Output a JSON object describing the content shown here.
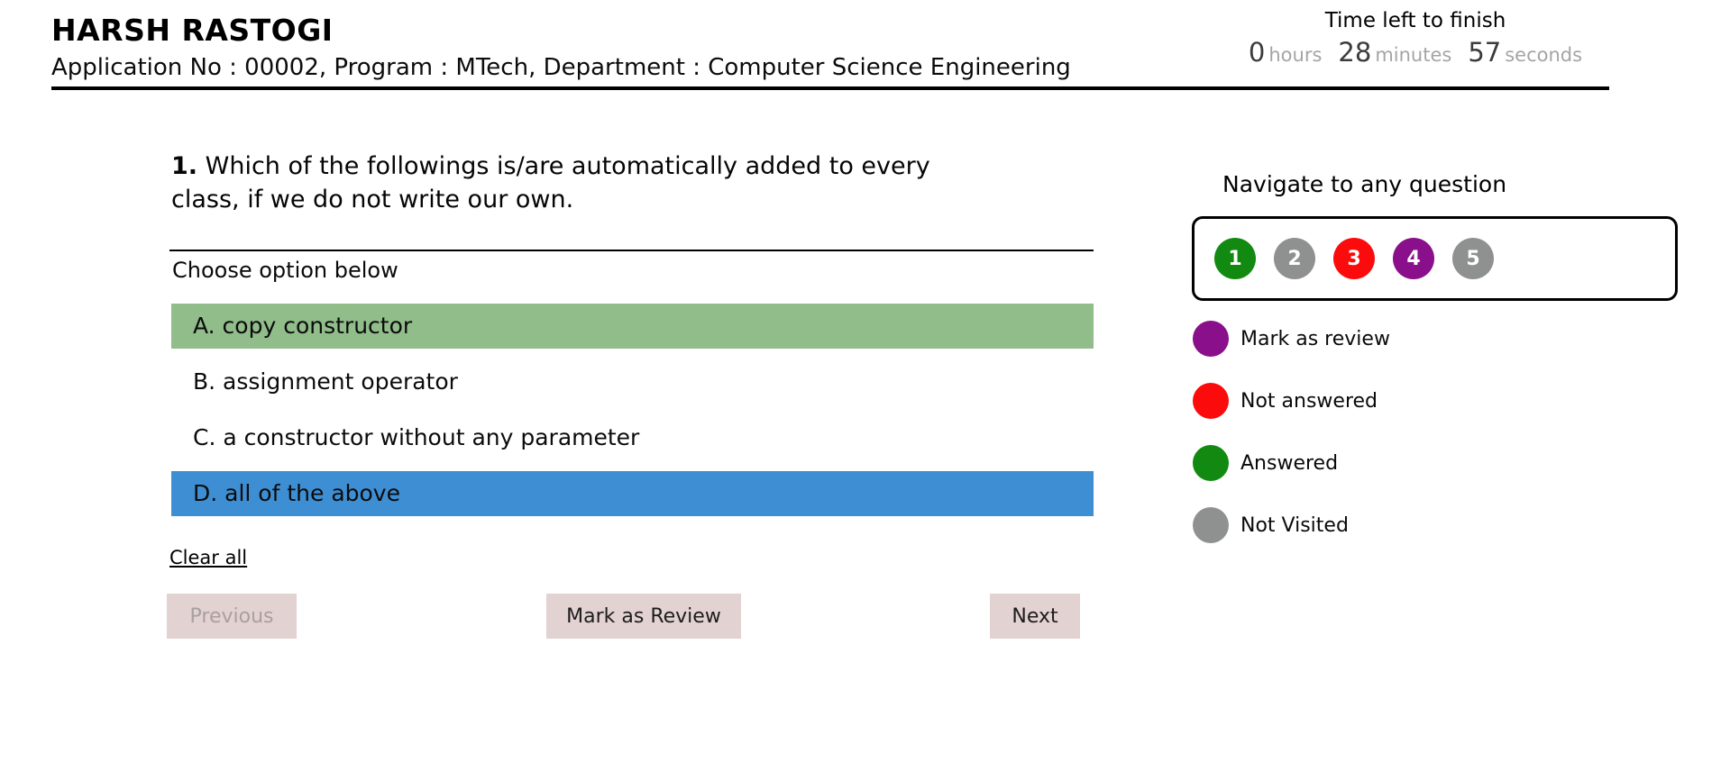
{
  "header": {
    "candidate_name": "HARSH RASTOGI",
    "application_details": "Application No : 00002, Program : MTech, Department : Computer Science Engineering",
    "timer": {
      "title": "Time left to finish",
      "hours_value": "0",
      "hours_label": "hours",
      "minutes_value": "28",
      "minutes_label": "minutes",
      "seconds_value": "57",
      "seconds_label": "seconds"
    }
  },
  "question": {
    "number": "1.",
    "text": "Which of the followings is/are automatically added to every class, if we do not write our own.",
    "choose_label": "Choose option below",
    "options": [
      {
        "label": "A. copy constructor",
        "state": "selected-green"
      },
      {
        "label": "B. assignment operator",
        "state": "unselected"
      },
      {
        "label": "C. a constructor without any parameter",
        "state": "unselected"
      },
      {
        "label": "D. all of the above",
        "state": "selected-blue"
      }
    ],
    "clear_all_label": "Clear all"
  },
  "actions": {
    "previous_label": "Previous",
    "previous_state": "disabled",
    "mark_review_label": "Mark as Review",
    "next_label": "Next"
  },
  "navigator": {
    "title": "Navigate to any question",
    "questions": [
      {
        "number": "1",
        "status": "answered"
      },
      {
        "number": "2",
        "status": "not-visited"
      },
      {
        "number": "3",
        "status": "not-answered"
      },
      {
        "number": "4",
        "status": "review"
      },
      {
        "number": "5",
        "status": "not-visited"
      }
    ],
    "legend": [
      {
        "label": "Mark as review",
        "status": "review"
      },
      {
        "label": "Not answered",
        "status": "not-answered"
      },
      {
        "label": "Answered",
        "status": "answered"
      },
      {
        "label": "Not Visited",
        "status": "not-visited"
      }
    ]
  },
  "palette": {
    "answered": "#128a12",
    "not-answered": "#fb0b0b",
    "review": "#8a0f8a",
    "not-visited": "#8f9190",
    "option-green": "#90bd8a",
    "option-blue": "#3d8ed3",
    "button-bg": "#e3d2d2",
    "timer-muted": "#a5a5a5",
    "timer-value": "#3b3b3b"
  }
}
